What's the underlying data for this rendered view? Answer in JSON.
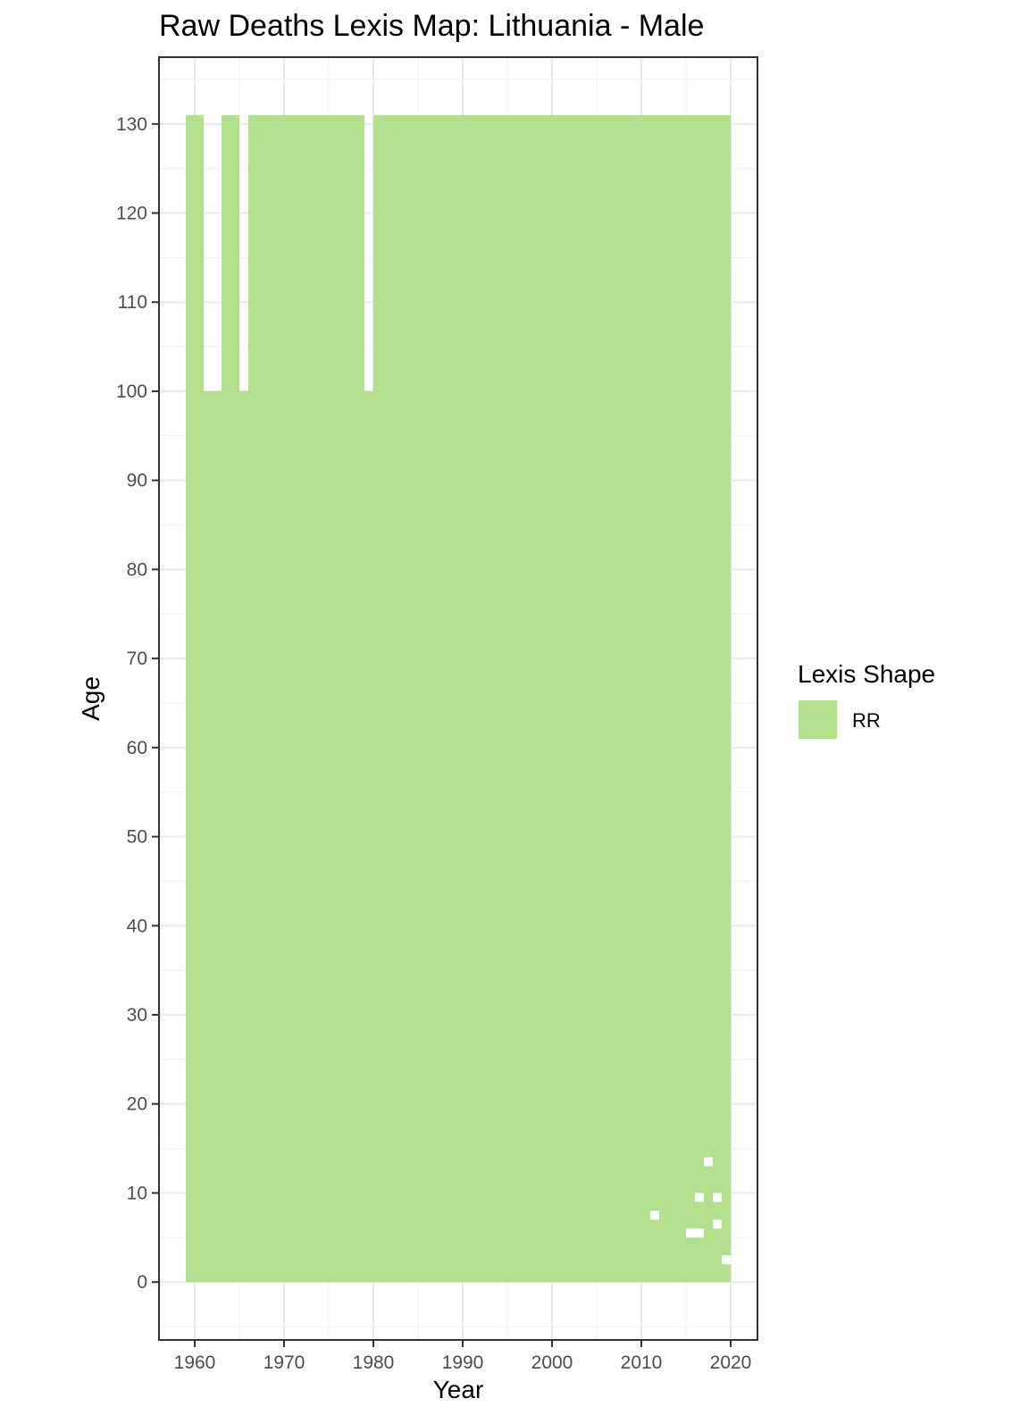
{
  "chart_data": {
    "type": "heatmap",
    "title": "Raw Deaths Lexis Map: Lithuania - Male",
    "xlabel": "Year",
    "ylabel": "Age",
    "xlim": [
      1956,
      2023
    ],
    "ylim": [
      -6.5,
      137.5
    ],
    "x_ticks": [
      1960,
      1970,
      1980,
      1990,
      2000,
      2010,
      2020
    ],
    "y_ticks": [
      0,
      10,
      20,
      30,
      40,
      50,
      60,
      70,
      80,
      90,
      100,
      110,
      120,
      130
    ],
    "grid": true,
    "legend": {
      "title": "Lexis Shape",
      "position": "right",
      "items": [
        {
          "label": "RR",
          "color": "#b3e08c"
        }
      ]
    },
    "series": [
      {
        "name": "RR",
        "color": "#b3e08c",
        "cells_ages": "0-130 (single-year ages, RR triangles)",
        "columns": [
          {
            "year_start": 1959,
            "year_end": 1960,
            "age_min": 0,
            "age_max": 131
          },
          {
            "year_start": 1961,
            "year_end": 1962,
            "age_min": 0,
            "age_max": 100
          },
          {
            "year_start": 1963,
            "year_end": 1964,
            "age_min": 0,
            "age_max": 131
          },
          {
            "year_start": 1965,
            "year_end": 1965,
            "age_min": 0,
            "age_max": 100
          },
          {
            "year_start": 1966,
            "year_end": 1978,
            "age_min": 0,
            "age_max": 131
          },
          {
            "year_start": 1979,
            "year_end": 1979,
            "age_min": 0,
            "age_max": 100
          },
          {
            "year_start": 1980,
            "year_end": 2019,
            "age_min": 0,
            "age_max": 131
          }
        ],
        "missing_cells": [
          {
            "year": 2011,
            "age": 7
          },
          {
            "year": 2015,
            "age": 5
          },
          {
            "year": 2016,
            "age": 5
          },
          {
            "year": 2016,
            "age": 9
          },
          {
            "year": 2017,
            "age": 13
          },
          {
            "year": 2018,
            "age": 9
          },
          {
            "year": 2018,
            "age": 6
          },
          {
            "year": 2019,
            "age": 2
          }
        ]
      }
    ]
  }
}
